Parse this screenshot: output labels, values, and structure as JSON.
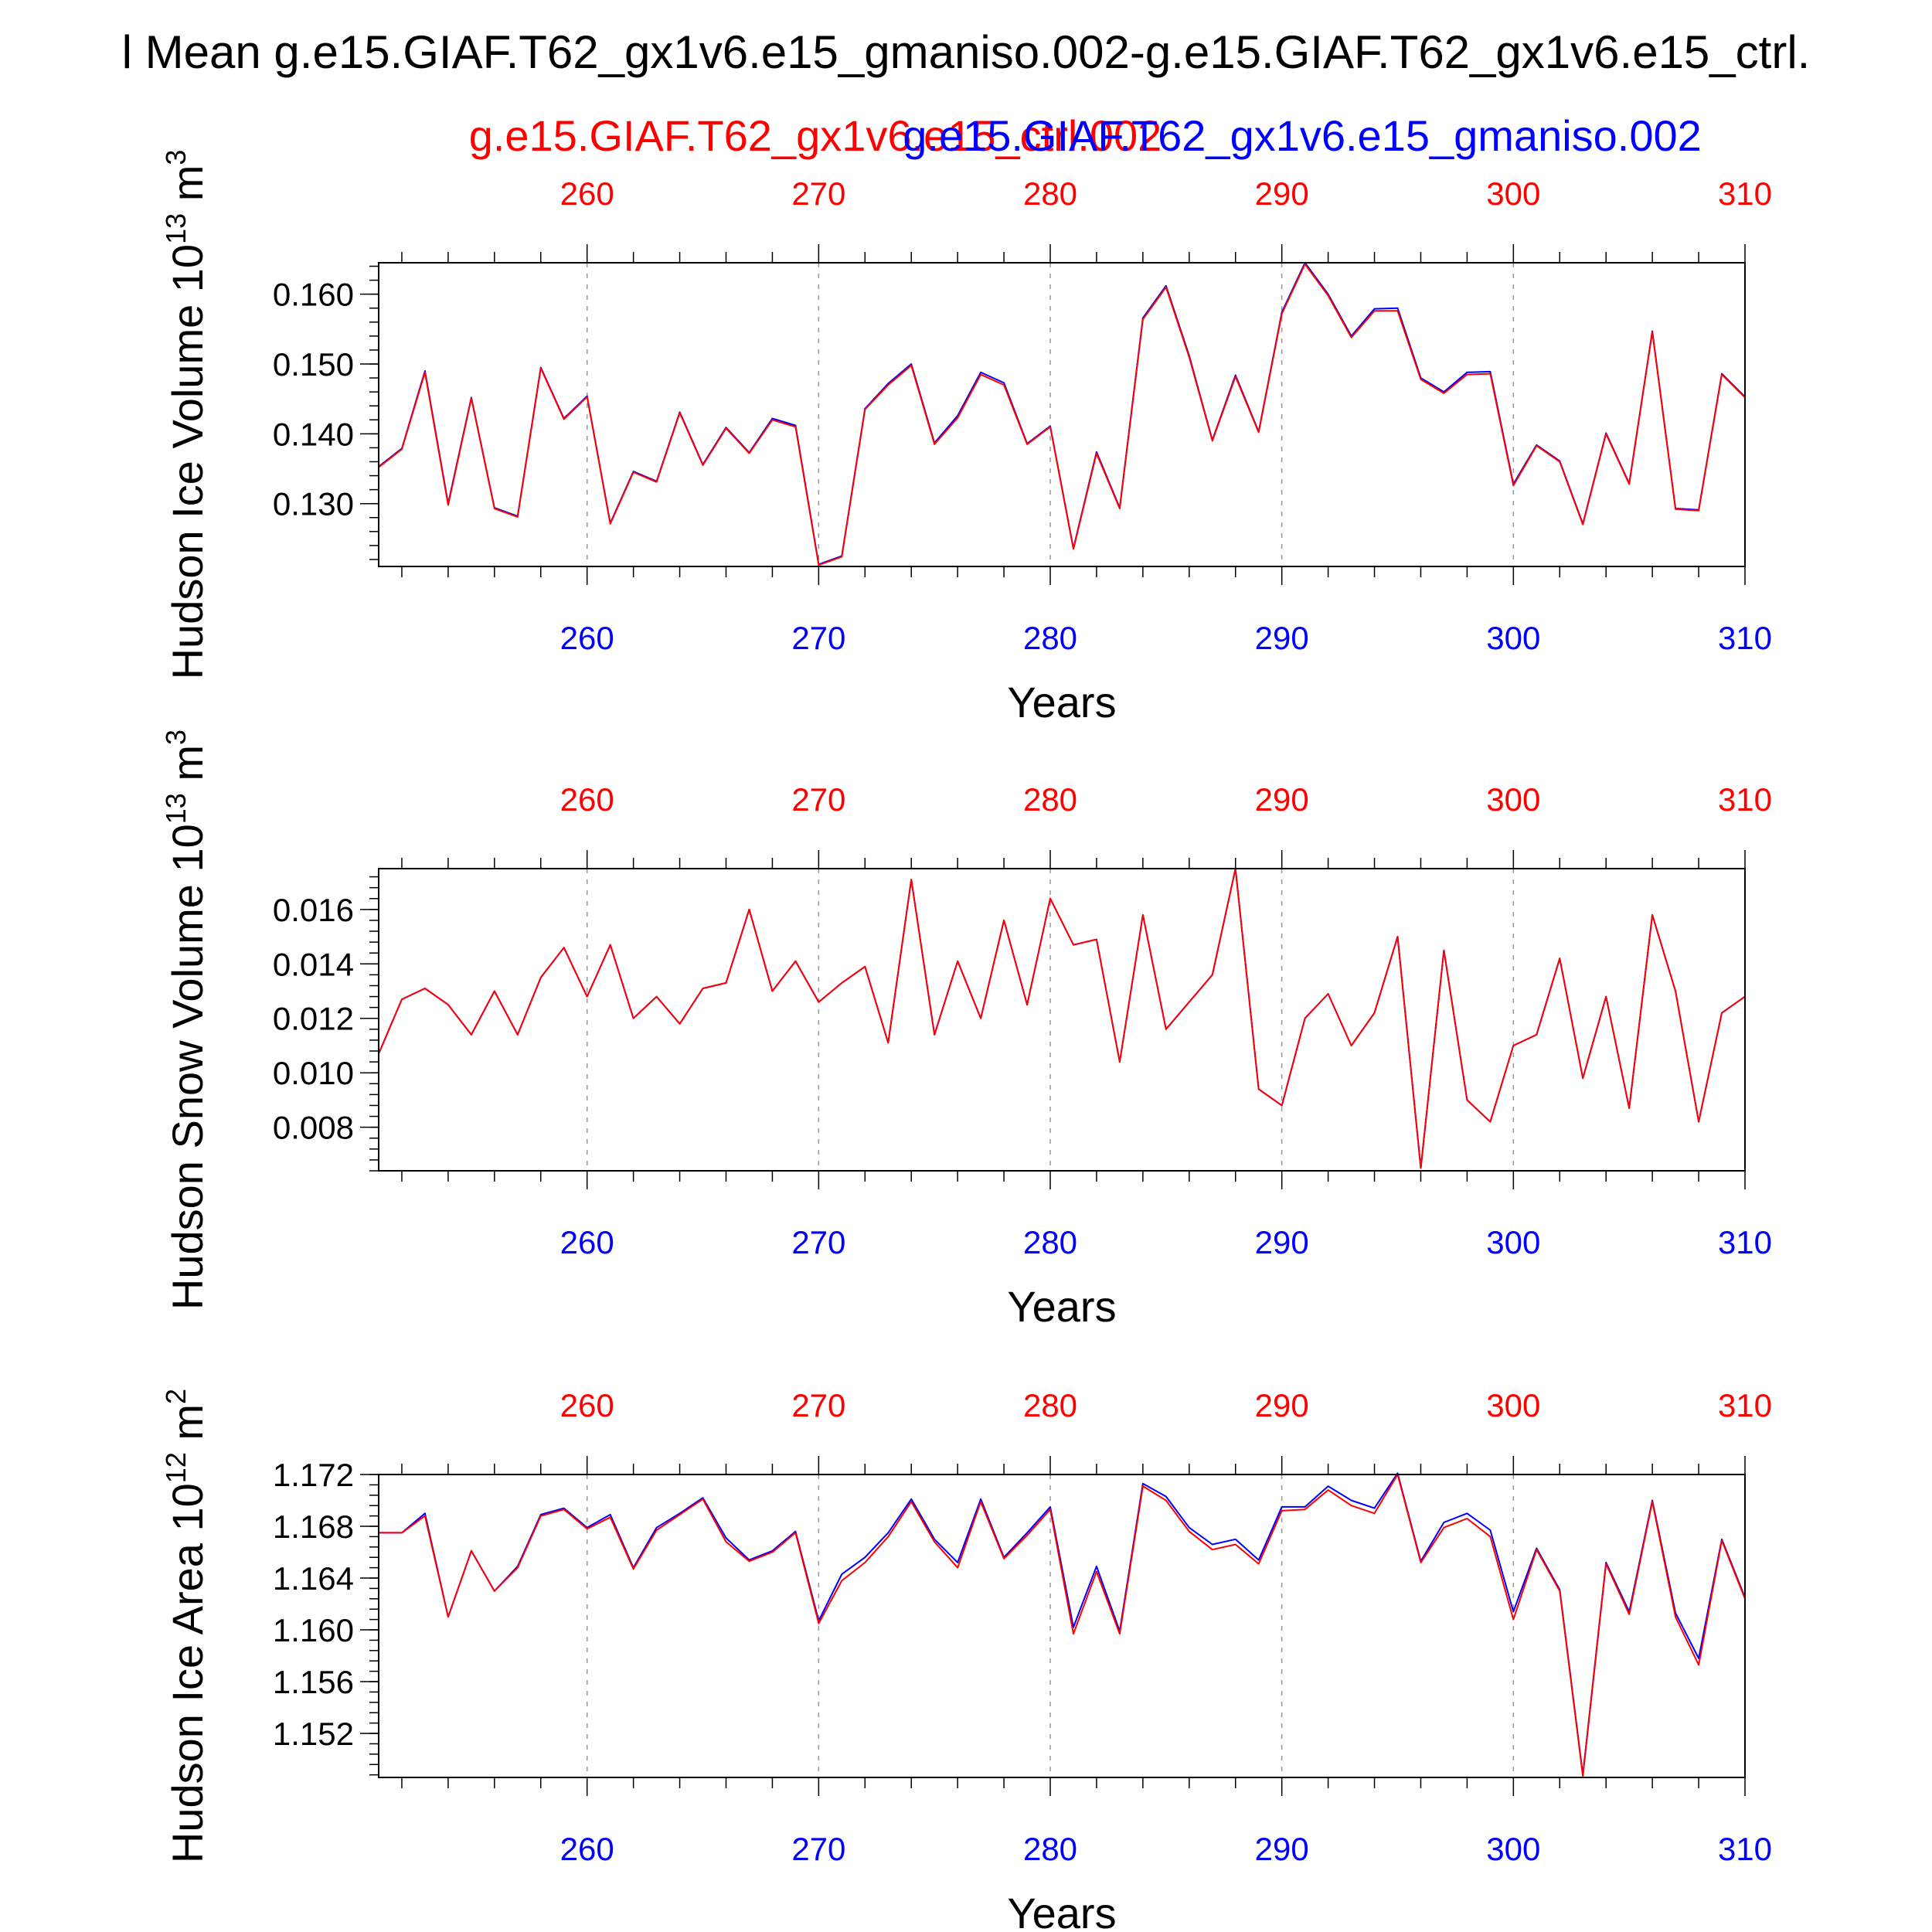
{
  "page": {
    "title": "l Mean g.e15.GIAF.T62_gx1v6.e15_gmaniso.002-g.e15.GIAF.T62_gx1v6.e15_ctrl.",
    "run_label_a": "g.e15.GIAF.T62_gx1v6.e15_ctrl.002",
    "run_label_b": "g.e15.GIAF.T62_gx1v6.e15_gmaniso.002"
  },
  "colors": {
    "series_a": "#ff0000",
    "series_b": "#0000ff",
    "axis": "#000000",
    "grid": "#999999"
  },
  "chart_data": [
    {
      "type": "line",
      "ylabel_text": "Hudson Ice Volume 10",
      "ylabel_exp": "13",
      "ylabel_unit": "m",
      "ylabel_unit_exp": "3",
      "xlabel": "Years",
      "xlim": [
        251,
        310
      ],
      "ylim": [
        0.121,
        0.1645
      ],
      "yticks": [
        "0.160",
        "0.150",
        "0.140",
        "0.130"
      ],
      "ytick_values": [
        0.16,
        0.15,
        0.14,
        0.13
      ],
      "xticks": [
        "260",
        "270",
        "280",
        "290",
        "300",
        "310"
      ],
      "xtick_values": [
        260,
        270,
        280,
        290,
        300,
        310
      ],
      "grid": "dashed vertical at major x ticks",
      "x": [
        251,
        252,
        253,
        254,
        255,
        256,
        257,
        258,
        259,
        260,
        261,
        262,
        263,
        264,
        265,
        266,
        267,
        268,
        269,
        270,
        271,
        272,
        273,
        274,
        275,
        276,
        277,
        278,
        279,
        280,
        281,
        282,
        283,
        284,
        285,
        286,
        287,
        288,
        289,
        290,
        291,
        292,
        293,
        294,
        295,
        296,
        297,
        298,
        299,
        300,
        301,
        302,
        303,
        304,
        305,
        306,
        307,
        308,
        309,
        310
      ],
      "series": [
        {
          "values": [
            0.1352,
            0.1378,
            0.1488,
            0.1298,
            0.1451,
            0.1293,
            0.1281,
            0.1494,
            0.1421,
            0.1453,
            0.1271,
            0.1345,
            0.1331,
            0.143,
            0.1355,
            0.1408,
            0.1372,
            0.142,
            0.141,
            0.1212,
            0.1224,
            0.1435,
            0.147,
            0.1498,
            0.1385,
            0.1423,
            0.1485,
            0.147,
            0.1385,
            0.141,
            0.1235,
            0.1372,
            0.1293,
            0.1564,
            0.161,
            0.151,
            0.139,
            0.1482,
            0.1402,
            0.1572,
            0.1643,
            0.1598,
            0.1538,
            0.1576,
            0.1576,
            0.1478,
            0.1458,
            0.1485,
            0.1486,
            0.1326,
            0.1383,
            0.136,
            0.127,
            0.14,
            0.1328,
            0.1546,
            0.1292,
            0.129,
            0.1485,
            0.1452
          ]
        },
        {
          "values": [
            0.1353,
            0.1379,
            0.149,
            0.13,
            0.1452,
            0.1294,
            0.1282,
            0.1495,
            0.1422,
            0.1454,
            0.1272,
            0.1346,
            0.1332,
            0.1431,
            0.1356,
            0.1409,
            0.1373,
            0.1422,
            0.1412,
            0.1213,
            0.1225,
            0.1436,
            0.1472,
            0.15,
            0.1387,
            0.1426,
            0.1488,
            0.1473,
            0.1386,
            0.1411,
            0.1236,
            0.1374,
            0.1294,
            0.1566,
            0.1612,
            0.1512,
            0.1391,
            0.1484,
            0.1403,
            0.1574,
            0.1645,
            0.16,
            0.154,
            0.1579,
            0.158,
            0.148,
            0.146,
            0.1488,
            0.1489,
            0.1328,
            0.1384,
            0.1361,
            0.1271,
            0.1401,
            0.1329,
            0.1547,
            0.1293,
            0.1291,
            0.1486,
            0.1453
          ]
        }
      ]
    },
    {
      "type": "line",
      "ylabel_text": "Hudson Snow Volume 10",
      "ylabel_exp": "13",
      "ylabel_unit": "m",
      "ylabel_unit_exp": "3",
      "xlabel": "Years",
      "xlim": [
        251,
        310
      ],
      "ylim": [
        0.0064,
        0.0175
      ],
      "yticks": [
        "0.016",
        "0.014",
        "0.012",
        "0.010",
        "0.008"
      ],
      "ytick_values": [
        0.016,
        0.014,
        0.012,
        0.01,
        0.008
      ],
      "xticks": [
        "260",
        "270",
        "280",
        "290",
        "300",
        "310"
      ],
      "xtick_values": [
        260,
        270,
        280,
        290,
        300,
        310
      ],
      "grid": "dashed vertical at major x ticks",
      "x": [
        251,
        252,
        253,
        254,
        255,
        256,
        257,
        258,
        259,
        260,
        261,
        262,
        263,
        264,
        265,
        266,
        267,
        268,
        269,
        270,
        271,
        272,
        273,
        274,
        275,
        276,
        277,
        278,
        279,
        280,
        281,
        282,
        283,
        284,
        285,
        286,
        287,
        288,
        289,
        290,
        291,
        292,
        293,
        294,
        295,
        296,
        297,
        298,
        299,
        300,
        301,
        302,
        303,
        304,
        305,
        306,
        307,
        308,
        309,
        310
      ],
      "series": [
        {
          "values": [
            0.0107,
            0.0127,
            0.0131,
            0.0125,
            0.0114,
            0.013,
            0.0114,
            0.0135,
            0.0146,
            0.0128,
            0.0147,
            0.012,
            0.0128,
            0.0118,
            0.0131,
            0.0133,
            0.016,
            0.013,
            0.0141,
            0.0126,
            0.0133,
            0.0139,
            0.0111,
            0.0171,
            0.0114,
            0.0141,
            0.012,
            0.0156,
            0.0125,
            0.0164,
            0.0147,
            0.0149,
            0.0104,
            0.0158,
            0.0116,
            0.0126,
            0.0136,
            0.0175,
            0.0094,
            0.0088,
            0.012,
            0.0129,
            0.011,
            0.0122,
            0.015,
            0.0065,
            0.0145,
            0.009,
            0.0082,
            0.011,
            0.0114,
            0.0142,
            0.0098,
            0.0128,
            0.0087,
            0.0158,
            0.013,
            0.0082,
            0.0122,
            0.0128
          ]
        },
        {
          "values": [
            0.0107,
            0.0127,
            0.0131,
            0.0125,
            0.0114,
            0.013,
            0.0114,
            0.0135,
            0.0146,
            0.0128,
            0.0147,
            0.012,
            0.0128,
            0.0118,
            0.0131,
            0.0133,
            0.016,
            0.013,
            0.0141,
            0.0126,
            0.0133,
            0.0139,
            0.0111,
            0.0171,
            0.0114,
            0.0141,
            0.012,
            0.0156,
            0.0125,
            0.0164,
            0.0147,
            0.0149,
            0.0104,
            0.0158,
            0.0116,
            0.0126,
            0.0136,
            0.0175,
            0.0094,
            0.0088,
            0.012,
            0.0129,
            0.011,
            0.0122,
            0.015,
            0.0065,
            0.0145,
            0.009,
            0.0082,
            0.011,
            0.0114,
            0.0142,
            0.0098,
            0.0128,
            0.0087,
            0.0158,
            0.013,
            0.0082,
            0.0122,
            0.0128
          ]
        }
      ]
    },
    {
      "type": "line",
      "ylabel_text": "Hudson Ice Area 10",
      "ylabel_exp": "12",
      "ylabel_unit": "m",
      "ylabel_unit_exp": "2",
      "xlabel": "Years",
      "xlim": [
        251,
        310
      ],
      "ylim": [
        1.1486,
        1.172
      ],
      "yticks": [
        "1.172",
        "1.168",
        "1.164",
        "1.160",
        "1.156",
        "1.152"
      ],
      "ytick_values": [
        1.172,
        1.168,
        1.164,
        1.16,
        1.156,
        1.152
      ],
      "xticks": [
        "260",
        "270",
        "280",
        "290",
        "300",
        "310"
      ],
      "xtick_values": [
        260,
        270,
        280,
        290,
        300,
        310
      ],
      "grid": "dashed vertical at major x ticks",
      "x": [
        251,
        252,
        253,
        254,
        255,
        256,
        257,
        258,
        259,
        260,
        261,
        262,
        263,
        264,
        265,
        266,
        267,
        268,
        269,
        270,
        271,
        272,
        273,
        274,
        275,
        276,
        277,
        278,
        279,
        280,
        281,
        282,
        283,
        284,
        285,
        286,
        287,
        288,
        289,
        290,
        291,
        292,
        293,
        294,
        295,
        296,
        297,
        298,
        299,
        300,
        301,
        302,
        303,
        304,
        305,
        306,
        307,
        308,
        309,
        310
      ],
      "series": [
        {
          "values": [
            1.1675,
            1.1675,
            1.1688,
            1.161,
            1.1661,
            1.163,
            1.1648,
            1.1688,
            1.1693,
            1.1678,
            1.1687,
            1.1647,
            1.1677,
            1.1689,
            1.1701,
            1.1668,
            1.1653,
            1.166,
            1.1675,
            1.1605,
            1.1638,
            1.1652,
            1.1672,
            1.1699,
            1.1668,
            1.1648,
            1.1699,
            1.1655,
            1.1673,
            1.1693,
            1.1597,
            1.1645,
            1.1597,
            1.1711,
            1.17,
            1.1676,
            1.1662,
            1.1666,
            1.1651,
            1.1692,
            1.1693,
            1.1708,
            1.1696,
            1.169,
            1.172,
            1.1652,
            1.1679,
            1.1686,
            1.1672,
            1.1608,
            1.1662,
            1.163,
            1.1487,
            1.1651,
            1.1612,
            1.1699,
            1.161,
            1.1573,
            1.1669,
            1.1624
          ]
        },
        {
          "values": [
            1.1675,
            1.1675,
            1.169,
            1.161,
            1.1661,
            1.163,
            1.1649,
            1.1689,
            1.1694,
            1.1679,
            1.1689,
            1.1648,
            1.1679,
            1.169,
            1.1702,
            1.1671,
            1.1654,
            1.1661,
            1.1676,
            1.1607,
            1.1643,
            1.1656,
            1.1675,
            1.1701,
            1.167,
            1.1652,
            1.1701,
            1.1656,
            1.1675,
            1.1695,
            1.1602,
            1.1649,
            1.1599,
            1.1713,
            1.1703,
            1.1679,
            1.1666,
            1.167,
            1.1654,
            1.1695,
            1.1695,
            1.1711,
            1.17,
            1.1694,
            1.1721,
            1.1653,
            1.1683,
            1.169,
            1.1677,
            1.1614,
            1.1663,
            1.1631,
            1.1488,
            1.1652,
            1.1614,
            1.17,
            1.1613,
            1.1578,
            1.167,
            1.1625
          ]
        }
      ]
    }
  ]
}
